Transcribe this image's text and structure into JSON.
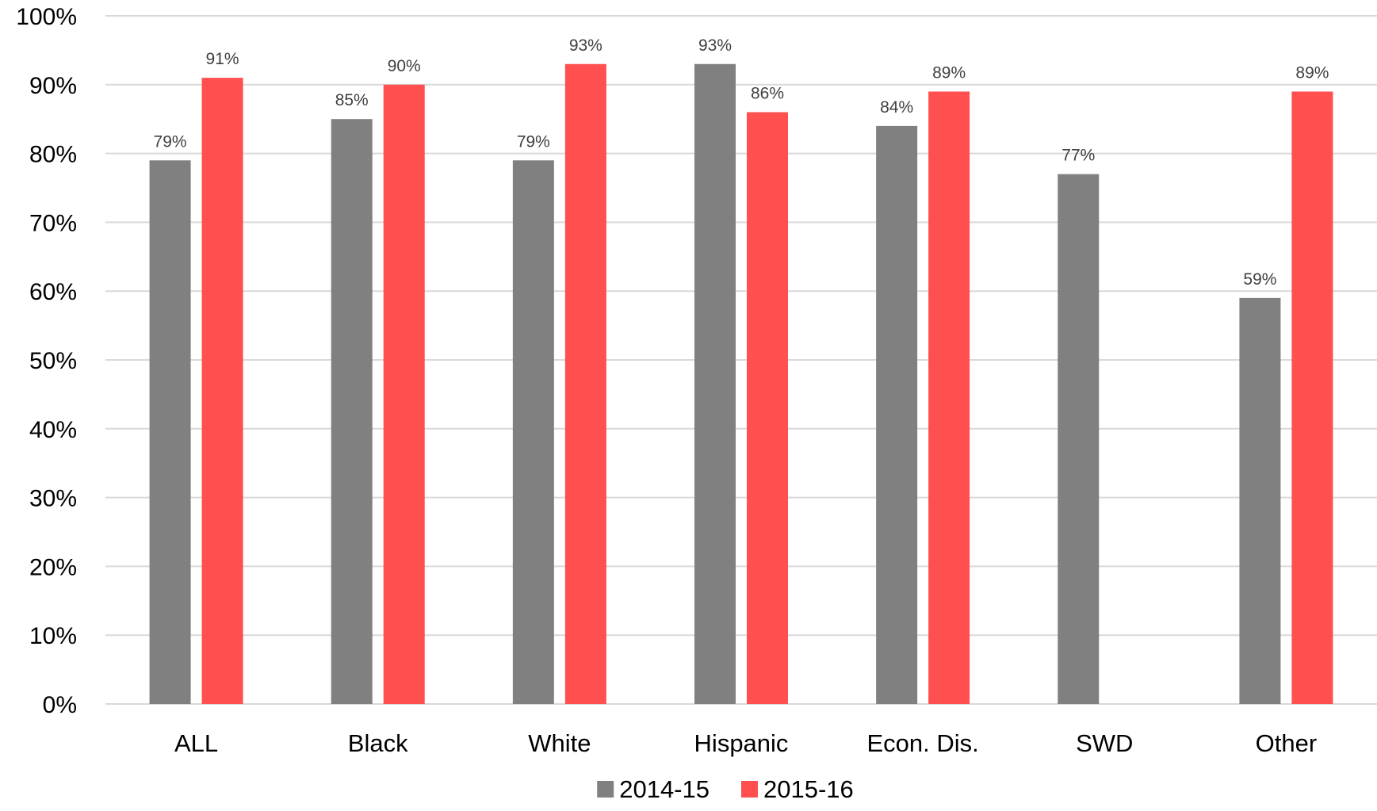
{
  "chart_data": {
    "type": "bar",
    "title": "",
    "xlabel": "",
    "ylabel": "",
    "categories": [
      "ALL",
      "Black",
      "White",
      "Hispanic",
      "Econ. Dis.",
      "SWD",
      "Other"
    ],
    "series": [
      {
        "name": "2014-15",
        "color": "#808080",
        "values": [
          79,
          85,
          79,
          93,
          84,
          77,
          59
        ],
        "labels": [
          "79%",
          "85%",
          "79%",
          "93%",
          "84%",
          "77%",
          "59%"
        ]
      },
      {
        "name": "2015-16",
        "color": "#ff4f4f",
        "values": [
          91,
          90,
          93,
          86,
          89,
          null,
          89
        ],
        "labels": [
          "91%",
          "90%",
          "93%",
          "86%",
          "89%",
          null,
          "89%"
        ]
      }
    ],
    "ylim": [
      0,
      100
    ],
    "yticks": [
      0,
      10,
      20,
      30,
      40,
      50,
      60,
      70,
      80,
      90,
      100
    ],
    "ytick_labels": [
      "0%",
      "10%",
      "20%",
      "30%",
      "40%",
      "50%",
      "60%",
      "70%",
      "80%",
      "90%",
      "100%"
    ],
    "grid": true,
    "legend_position": "bottom-center"
  }
}
